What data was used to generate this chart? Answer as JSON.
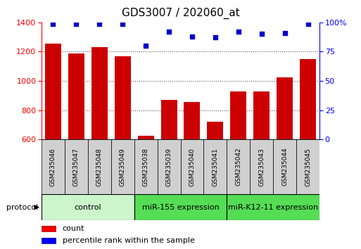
{
  "title": "GDS3007 / 202060_at",
  "samples": [
    "GSM235046",
    "GSM235047",
    "GSM235048",
    "GSM235049",
    "GSM235038",
    "GSM235039",
    "GSM235040",
    "GSM235041",
    "GSM235042",
    "GSM235043",
    "GSM235044",
    "GSM235045"
  ],
  "counts": [
    1255,
    1190,
    1230,
    1170,
    625,
    870,
    855,
    720,
    930,
    930,
    1025,
    1150
  ],
  "percentile_ranks": [
    99,
    99,
    99,
    99,
    80,
    92,
    88,
    87,
    92,
    90,
    91,
    99
  ],
  "groups": [
    {
      "label": "control",
      "start": 0,
      "end": 4,
      "color": "#ccf5cc"
    },
    {
      "label": "miR-155 expression",
      "start": 4,
      "end": 8,
      "color": "#55dd55"
    },
    {
      "label": "miR-K12-11 expression",
      "start": 8,
      "end": 12,
      "color": "#55dd55"
    }
  ],
  "bar_color": "#cc0000",
  "dot_color": "#0000cc",
  "ylim_left": [
    600,
    1400
  ],
  "ylim_right": [
    0,
    100
  ],
  "yticks_left": [
    600,
    800,
    1000,
    1200,
    1400
  ],
  "yticks_right": [
    0,
    25,
    50,
    75,
    100
  ],
  "yticklabels_right": [
    "0",
    "25",
    "50",
    "75",
    "100%"
  ],
  "background_color": "#ffffff",
  "grid_color": "#555555",
  "legend_count_label": "count",
  "legend_pct_label": "percentile rank within the sample",
  "sample_box_color": "#d0d0d0",
  "title_fontsize": 11,
  "bar_fontsize": 6.5,
  "group_fontsize": 8,
  "legend_fontsize": 8,
  "ytick_fontsize": 8
}
